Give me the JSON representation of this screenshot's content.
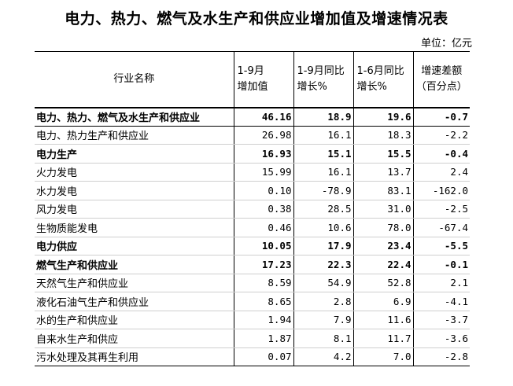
{
  "title": "电力、热力、燃气及水生产和供应业增加值及增速情况表",
  "unit": "单位：亿元",
  "header": {
    "col0": "行业名称",
    "col1_line1": "1-9月",
    "col1_line2": "增加值",
    "col2_line1": "1-9月同比",
    "col2_line2": "增长%",
    "col3_line1": "1-6月同比",
    "col3_line2": "增长%",
    "col4_line1": "增速差额",
    "col4_line2": "（百分点）"
  },
  "rows": [
    {
      "name": "电力、热力、燃气及水生产和供应业",
      "v1": "46.16",
      "v2": "18.9",
      "v3": "19.6",
      "v4": "-0.7"
    },
    {
      "name": "电力、热力生产和供应业",
      "v1": "26.98",
      "v2": "16.1",
      "v3": "18.3",
      "v4": "-2.2"
    },
    {
      "name": "电力生产",
      "v1": "16.93",
      "v2": "15.1",
      "v3": "15.5",
      "v4": "-0.4"
    },
    {
      "name": "火力发电",
      "v1": "15.99",
      "v2": "16.1",
      "v3": "13.7",
      "v4": "2.4"
    },
    {
      "name": "水力发电",
      "v1": "0.10",
      "v2": "-78.9",
      "v3": "83.1",
      "v4": "-162.0"
    },
    {
      "name": "风力发电",
      "v1": "0.38",
      "v2": "28.5",
      "v3": "31.0",
      "v4": "-2.5"
    },
    {
      "name": "生物质能发电",
      "v1": "0.46",
      "v2": "10.6",
      "v3": "78.0",
      "v4": "-67.4"
    },
    {
      "name": "电力供应",
      "v1": "10.05",
      "v2": "17.9",
      "v3": "23.4",
      "v4": "-5.5"
    },
    {
      "name": "燃气生产和供应业",
      "v1": "17.23",
      "v2": "22.3",
      "v3": "22.4",
      "v4": "-0.1"
    },
    {
      "name": "天然气生产和供应业",
      "v1": "8.59",
      "v2": "54.9",
      "v3": "52.8",
      "v4": "2.1"
    },
    {
      "name": "液化石油气生产和供应业",
      "v1": "8.65",
      "v2": "2.8",
      "v3": "6.9",
      "v4": "-4.1"
    },
    {
      "name": "水的生产和供应业",
      "v1": "1.94",
      "v2": "7.9",
      "v3": "11.6",
      "v4": "-3.7"
    },
    {
      "name": "自来水生产和供应",
      "v1": "1.87",
      "v2": "8.1",
      "v3": "11.7",
      "v4": "-3.6"
    },
    {
      "name": "污水处理及其再生利用",
      "v1": "0.07",
      "v2": "4.2",
      "v3": "7.0",
      "v4": "-2.8"
    }
  ]
}
